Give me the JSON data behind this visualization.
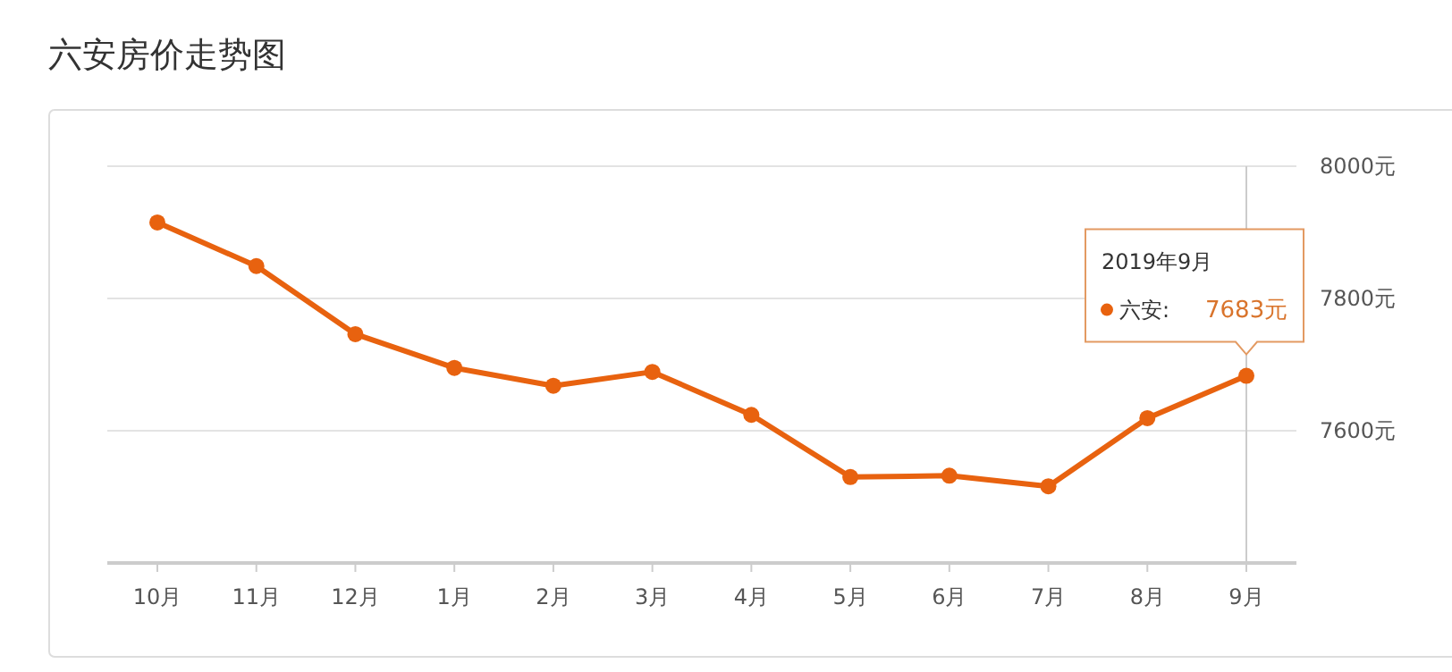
{
  "chart_data": {
    "type": "line",
    "title": "六安房价走势图",
    "categories": [
      "10月",
      "11月",
      "12月",
      "1月",
      "2月",
      "3月",
      "4月",
      "5月",
      "6月",
      "7月",
      "8月",
      "9月"
    ],
    "series": [
      {
        "name": "六安:",
        "color": "#e8620f",
        "values": [
          7915,
          7849,
          7746,
          7695,
          7668,
          7689,
          7624,
          7530,
          7532,
          7516,
          7619,
          7683
        ],
        "value_labels": [
          null,
          null,
          null,
          null,
          null,
          null,
          null,
          null,
          null,
          null,
          null,
          "7683元"
        ]
      }
    ],
    "ylim": [
      7400,
      8000
    ],
    "yticks": [
      {
        "value": 7400,
        "label": null
      },
      {
        "value": 7600,
        "label": "7600元"
      },
      {
        "value": 7800,
        "label": "7800元"
      },
      {
        "value": 8000,
        "label": "8000元"
      }
    ],
    "grid": "y",
    "marker": "circle",
    "line_style": "solid",
    "ref_lines": [
      {
        "axis": "x",
        "value": "9月",
        "color": "#cccccc"
      }
    ],
    "annotations": [
      "2019年9月"
    ]
  }
}
